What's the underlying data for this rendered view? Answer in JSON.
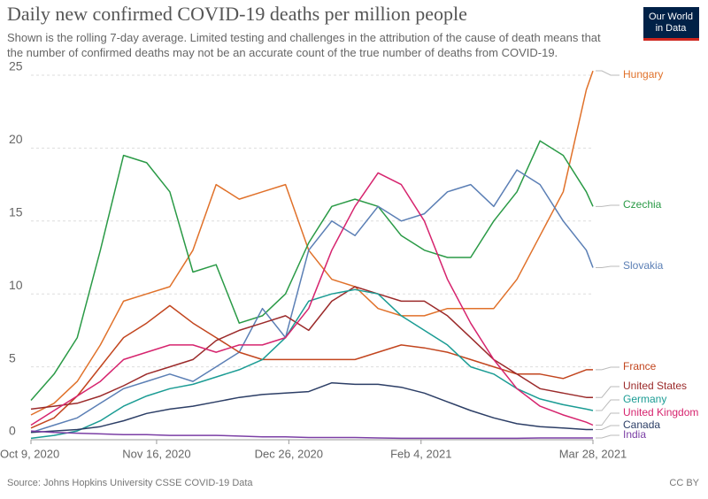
{
  "chart_data": {
    "type": "line",
    "title": "Daily new confirmed COVID-19 deaths per million people",
    "subtitle": "Shown is the rolling 7-day average. Limited testing and challenges in the attribution of the cause of death means that the number of confirmed deaths may not be an accurate count of the true number of deaths from COVID-19.",
    "source": "Source: Johns Hopkins University CSSE COVID-19 Data",
    "license": "CC BY",
    "logo": [
      "Our World",
      "in Data"
    ],
    "x": [
      "2020-10-09",
      "2020-10-16",
      "2020-10-23",
      "2020-10-30",
      "2020-11-06",
      "2020-11-13",
      "2020-11-20",
      "2020-11-27",
      "2020-12-04",
      "2020-12-11",
      "2020-12-18",
      "2020-12-25",
      "2021-01-01",
      "2021-01-08",
      "2021-01-15",
      "2021-01-22",
      "2021-01-29",
      "2021-02-05",
      "2021-02-12",
      "2021-02-19",
      "2021-02-26",
      "2021-03-05",
      "2021-03-12",
      "2021-03-19",
      "2021-03-26",
      "2021-03-28"
    ],
    "xlim": [
      "2020-10-09",
      "2021-03-28"
    ],
    "xticks": [
      {
        "value": "2020-10-09",
        "label": "Oct 9, 2020"
      },
      {
        "value": "2020-11-16",
        "label": "Nov 16, 2020"
      },
      {
        "value": "2020-12-26",
        "label": "Dec 26, 2020"
      },
      {
        "value": "2021-02-04",
        "label": "Feb 4, 2021"
      },
      {
        "value": "2021-03-28",
        "label": "Mar 28, 2021"
      }
    ],
    "ylim": [
      0,
      25
    ],
    "yticks": [
      0,
      5,
      10,
      15,
      20,
      25
    ],
    "grid": true,
    "series": [
      {
        "name": "Hungary",
        "color": "#e0712a",
        "values": [
          1.7,
          2.5,
          4,
          6.5,
          9.5,
          10,
          10.5,
          13,
          17.5,
          16.5,
          17,
          17.5,
          13,
          11,
          10.5,
          9,
          8.5,
          8.5,
          9,
          9,
          9,
          11,
          14,
          17,
          24,
          25.3
        ]
      },
      {
        "name": "Czechia",
        "color": "#2a9a46",
        "values": [
          2.7,
          4.5,
          7,
          13,
          19.5,
          19,
          17,
          11.5,
          12,
          8,
          8.5,
          10,
          13.5,
          16,
          16.5,
          16,
          14,
          13,
          12.5,
          12.5,
          15,
          17,
          20.5,
          19.5,
          17,
          16
        ]
      },
      {
        "name": "Slovakia",
        "color": "#5b7fb5",
        "values": [
          0.5,
          1,
          1.5,
          2.5,
          3.5,
          4,
          4.5,
          4,
          5,
          6,
          9,
          7,
          13,
          15,
          14,
          16,
          15,
          15.5,
          17,
          17.5,
          16,
          18.5,
          17.5,
          15,
          13,
          11.8
        ]
      },
      {
        "name": "France",
        "color": "#c2451e",
        "values": [
          0.8,
          1.5,
          3,
          5,
          7,
          8,
          9.2,
          8,
          7,
          6,
          5.5,
          5.5,
          5.5,
          5.5,
          5.5,
          6,
          6.5,
          6.3,
          6,
          5.5,
          5,
          4.5,
          4.5,
          4.2,
          4.8,
          4.8
        ]
      },
      {
        "name": "United States",
        "color": "#9b2a2a",
        "values": [
          2.1,
          2.3,
          2.5,
          3,
          3.7,
          4.5,
          5,
          5.5,
          6.8,
          7.5,
          8,
          8.5,
          7.5,
          9.5,
          10.5,
          10,
          9.5,
          9.5,
          8.5,
          7,
          5.5,
          4.5,
          3.5,
          3.2,
          2.9,
          2.9
        ]
      },
      {
        "name": "Germany",
        "color": "#1b9c94",
        "values": [
          0.1,
          0.3,
          0.6,
          1.3,
          2.3,
          3,
          3.5,
          3.8,
          4.3,
          4.8,
          5.5,
          7,
          9.5,
          10,
          10.3,
          10,
          8.5,
          7.5,
          6.5,
          5,
          4.5,
          3.5,
          2.8,
          2.4,
          2.1,
          2
        ]
      },
      {
        "name": "United Kingdom",
        "color": "#d6246e",
        "values": [
          1,
          2,
          3,
          4,
          5.5,
          6,
          6.5,
          6.5,
          6,
          6.5,
          6.5,
          7,
          9,
          13,
          16,
          18.3,
          17.5,
          15,
          11,
          8,
          5.5,
          3.5,
          2.3,
          1.7,
          1.2,
          1
        ]
      },
      {
        "name": "Canada",
        "color": "#2c3e66",
        "values": [
          0.5,
          0.6,
          0.7,
          0.9,
          1.3,
          1.8,
          2.1,
          2.3,
          2.6,
          2.9,
          3.1,
          3.2,
          3.3,
          3.9,
          3.8,
          3.8,
          3.6,
          3.2,
          2.6,
          2,
          1.5,
          1.1,
          0.9,
          0.8,
          0.7,
          0.7
        ]
      },
      {
        "name": "India",
        "color": "#7b3fa5",
        "values": [
          0.6,
          0.5,
          0.45,
          0.4,
          0.35,
          0.35,
          0.3,
          0.3,
          0.3,
          0.25,
          0.2,
          0.2,
          0.15,
          0.15,
          0.15,
          0.12,
          0.1,
          0.1,
          0.1,
          0.1,
          0.1,
          0.1,
          0.12,
          0.12,
          0.12,
          0.12
        ]
      }
    ]
  }
}
